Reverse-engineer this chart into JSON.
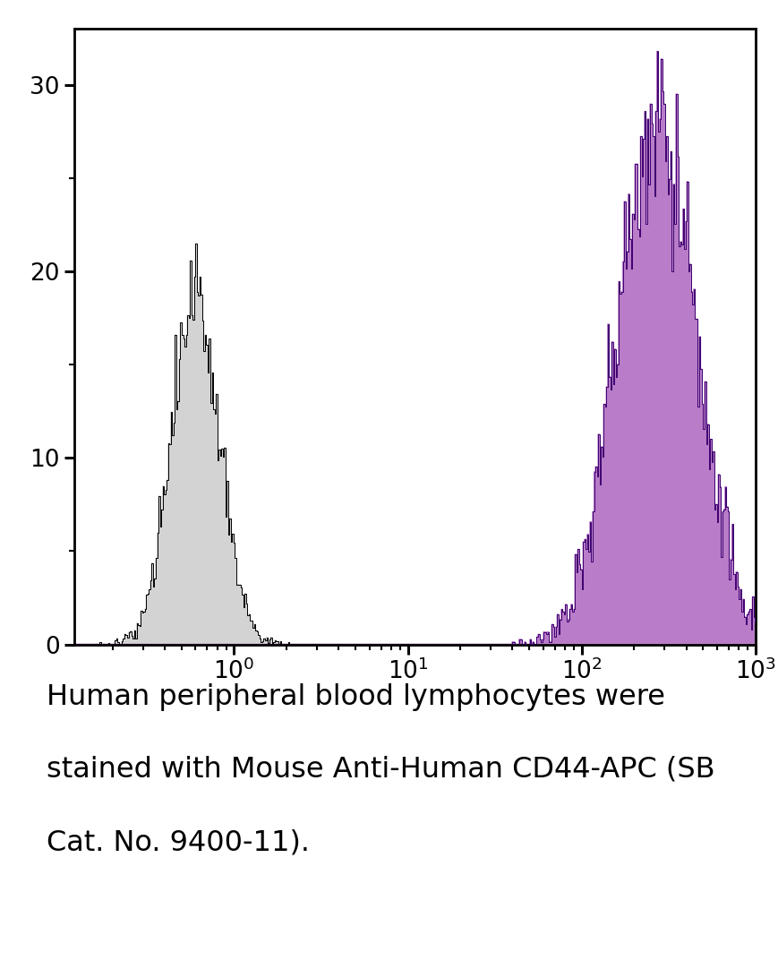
{
  "xlim": [
    0.12,
    1000
  ],
  "ylim": [
    0,
    33
  ],
  "yticks": [
    0,
    10,
    20,
    30
  ],
  "isotype_color": "#000000",
  "isotype_fill": "#d3d3d3",
  "stained_color": "#3d0070",
  "stained_fill": "#b87cc8",
  "isotype_peak_x": 0.6,
  "isotype_peak_y": 21.5,
  "isotype_sigma": 0.32,
  "stained_peak_x": 270,
  "stained_peak_y": 31.8,
  "stained_sigma": 0.52,
  "background_color": "#ffffff",
  "axes_linewidth": 2.0,
  "tick_fontsize": 19,
  "text_lines": [
    "Human peripheral blood lymphocytes were",
    "stained with Mouse Anti-Human CD44-APC (SB",
    "Cat. No. 9400-11)."
  ],
  "text_fontsize": 23
}
